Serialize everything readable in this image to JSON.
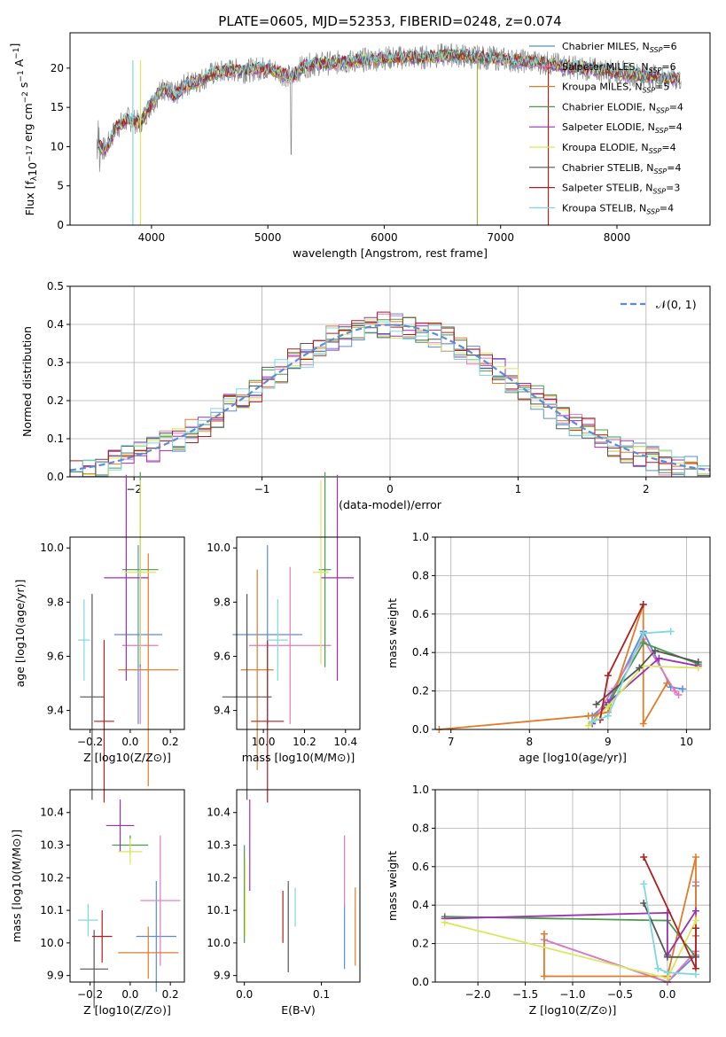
{
  "figure": {
    "title": "PLATE=0605, MJD=52353, FIBERID=0248, z=0.074"
  },
  "chart_data": [
    {
      "id": "spectrum",
      "type": "line",
      "xlabel": "wavelength [Angstrom, rest frame]",
      "ylabel": "Flux [f_λ 10^-17 erg cm^-2 s^-1 A^-1]",
      "xlim": [
        3300,
        8800
      ],
      "ylim": [
        0,
        24.5
      ],
      "xticks": [
        4000,
        5000,
        6000,
        7000,
        8000
      ],
      "yticks": [
        0,
        5,
        10,
        15,
        20
      ],
      "grid": false,
      "legend_position": "right",
      "observed": {
        "x": [
          3530,
          3600,
          3700,
          3800,
          3900,
          4000,
          4100,
          4200,
          4300,
          4400,
          4500,
          4600,
          4700,
          4800,
          4900,
          5000,
          5100,
          5200,
          5300,
          5400,
          5500,
          5600,
          5700,
          5800,
          5900,
          6000,
          6100,
          6200,
          6300,
          6400,
          6500,
          6600,
          6700,
          6800,
          6900,
          7000,
          7100,
          7200,
          7300,
          7400,
          7500,
          7600,
          7700,
          7800,
          7900,
          8000,
          8100,
          8200,
          8300,
          8400,
          8500
        ],
        "y": [
          10.5,
          9.5,
          12.5,
          13.5,
          13,
          15.5,
          17.5,
          16.5,
          18,
          18.3,
          19.2,
          19.5,
          19.8,
          19.6,
          19.9,
          20,
          19.5,
          18.8,
          20.2,
          20.5,
          20.6,
          20.7,
          20.8,
          21,
          21.1,
          21.3,
          21.3,
          21.4,
          21.3,
          21.5,
          21.6,
          21.7,
          21.5,
          21.4,
          21.3,
          21.2,
          21,
          20.9,
          20.8,
          20.6,
          20.4,
          20.2,
          20,
          19.8,
          19.7,
          19.5,
          19.3,
          19.1,
          19,
          18.8,
          18.6
        ]
      },
      "series": [
        {
          "name": "Chabrier MILES, N_SSP=6",
          "label_main": "Chabrier MILES, N",
          "label_sub": "SSP",
          "label_tail": "=6",
          "color": "#5b8bd9"
        },
        {
          "name": "Salpeter MILES, N_SSP=6",
          "label_main": "Salpeter MILES, N",
          "label_sub": "SSP",
          "label_tail": "=6",
          "color": "#e377c2"
        },
        {
          "name": "Kroupa MILES, N_SSP=5",
          "label_main": "Kroupa MILES, N",
          "label_sub": "SSP",
          "label_tail": "=5",
          "color": "#e07b2a"
        },
        {
          "name": "Chabrier ELODIE, N_SSP=4",
          "label_main": "Chabrier ELODIE, N",
          "label_sub": "SSP",
          "label_tail": "=4",
          "color": "#4a9a4a"
        },
        {
          "name": "Salpeter ELODIE, N_SSP=4",
          "label_main": "Salpeter ELODIE, N",
          "label_sub": "SSP",
          "label_tail": "=4",
          "color": "#9b30b4"
        },
        {
          "name": "Kroupa ELODIE, N_SSP=4",
          "label_main": "Kroupa ELODIE, N",
          "label_sub": "SSP",
          "label_tail": "=4",
          "color": "#d8e85a"
        },
        {
          "name": "Chabrier STELIB, N_SSP=4",
          "label_main": "Chabrier STELIB, N",
          "label_sub": "SSP",
          "label_tail": "=4",
          "color": "#555555"
        },
        {
          "name": "Salpeter STELIB, N_SSP=3",
          "label_main": "Salpeter STELIB, N",
          "label_sub": "SSP",
          "label_tail": "=3",
          "color": "#b01e1e"
        },
        {
          "name": "Kroupa STELIB, N_SSP=4",
          "label_main": "Kroupa STELIB, N",
          "label_sub": "SSP",
          "label_tail": "=4",
          "color": "#7fd8e0"
        }
      ]
    },
    {
      "id": "residuals",
      "type": "line",
      "xlabel": "(data-model)/error",
      "ylabel": "Normed distribution",
      "xlim": [
        -2.5,
        2.5
      ],
      "ylim": [
        0,
        0.5
      ],
      "xticks": [
        -2,
        -1,
        0,
        1,
        2
      ],
      "yticks": [
        0.0,
        0.1,
        0.2,
        0.3,
        0.4,
        0.5
      ],
      "grid": true,
      "legend_position": "top-right",
      "reference_label": "𝒩(0, 1)",
      "reference_color": "#5b8bd9"
    },
    {
      "id": "age-vs-Z",
      "type": "scatter",
      "xlabel": "Z [log10(Z/Z⊙)]",
      "ylabel": "age  [log10(age/yr)]",
      "xlim": [
        -0.3,
        0.27
      ],
      "ylim": [
        9.33,
        10.04
      ],
      "xticks": [
        -0.2,
        0.0,
        0.2
      ],
      "yticks": [
        9.4,
        9.6,
        9.8,
        10.0
      ],
      "points": [
        {
          "x": 0.04,
          "y": 9.68,
          "xerr": 0.12,
          "yerr": 0.33
        },
        {
          "x": 0.05,
          "y": 9.64,
          "xerr": 0.09,
          "yerr": 0.29
        },
        {
          "x": 0.09,
          "y": 9.55,
          "xerr": 0.15,
          "yerr": 0.43
        },
        {
          "x": 0.05,
          "y": 9.92,
          "xerr": 0.09,
          "yerr": 0.36
        },
        {
          "x": -0.02,
          "y": 9.89,
          "xerr": 0.11,
          "yerr": 0.38
        },
        {
          "x": 0.05,
          "y": 9.91,
          "xerr": 0.08,
          "yerr": 0.34
        },
        {
          "x": -0.19,
          "y": 9.45,
          "xerr": 0.06,
          "yerr": 0.38
        },
        {
          "x": -0.13,
          "y": 9.36,
          "xerr": 0.05,
          "yerr": 0.3
        },
        {
          "x": -0.23,
          "y": 9.66,
          "xerr": 0.03,
          "yerr": 0.15
        }
      ]
    },
    {
      "id": "age-vs-mass",
      "type": "scatter",
      "xlabel": "mass [log10(M/M⊙)]",
      "ylabel": "",
      "xlim": [
        9.87,
        10.47
      ],
      "ylim": [
        9.33,
        10.04
      ],
      "xticks": [
        10.0,
        10.2,
        10.4
      ],
      "yticks": [
        9.4,
        9.6,
        9.8,
        10.0
      ],
      "points": [
        {
          "x": 10.02,
          "y": 9.68,
          "xerr": 0.17,
          "yerr": 0.33
        },
        {
          "x": 10.13,
          "y": 9.64,
          "xerr": 0.2,
          "yerr": 0.29
        },
        {
          "x": 9.97,
          "y": 9.55,
          "xerr": 0.08,
          "yerr": 0.37
        },
        {
          "x": 10.3,
          "y": 9.92,
          "xerr": 0.03,
          "yerr": 0.36
        },
        {
          "x": 10.36,
          "y": 9.89,
          "xerr": 0.08,
          "yerr": 0.38
        },
        {
          "x": 10.28,
          "y": 9.91,
          "xerr": 0.04,
          "yerr": 0.34
        },
        {
          "x": 9.92,
          "y": 9.45,
          "xerr": 0.12,
          "yerr": 0.38
        },
        {
          "x": 10.02,
          "y": 9.36,
          "xerr": 0.08,
          "yerr": 0.3
        },
        {
          "x": 10.07,
          "y": 9.66,
          "xerr": 0.05,
          "yerr": 0.15
        }
      ]
    },
    {
      "id": "weight-vs-age",
      "type": "line",
      "xlabel": "age  [log10(age/yr)]",
      "ylabel": "mass weight",
      "xlim": [
        6.8,
        10.3
      ],
      "ylim": [
        0,
        1
      ],
      "xticks": [
        7,
        8,
        9,
        10
      ],
      "yticks": [
        0.0,
        0.2,
        0.4,
        0.6,
        0.8,
        1.0
      ],
      "grid": true,
      "series": [
        {
          "x": [
            8.8,
            9.0,
            9.45,
            9.8,
            9.95
          ],
          "y": [
            0.07,
            0.14,
            0.51,
            0.22,
            0.21
          ]
        },
        {
          "x": [
            8.8,
            9.05,
            9.45,
            9.85,
            9.9
          ],
          "y": [
            0.04,
            0.2,
            0.47,
            0.2,
            0.18
          ]
        },
        {
          "x": [
            6.85,
            8.75,
            9.0,
            9.45,
            9.45,
            9.75
          ],
          "y": [
            0.0,
            0.07,
            0.09,
            0.65,
            0.03,
            0.24
          ]
        },
        {
          "x": [
            8.8,
            9.0,
            9.45,
            10.15
          ],
          "y": [
            0.04,
            0.13,
            0.45,
            0.34
          ]
        },
        {
          "x": [
            8.8,
            9.0,
            9.65,
            10.15
          ],
          "y": [
            0.03,
            0.14,
            0.37,
            0.33
          ]
        },
        {
          "x": [
            8.75,
            9.0,
            9.45,
            10.15
          ],
          "y": [
            0.02,
            0.12,
            0.33,
            0.32
          ]
        },
        {
          "x": [
            8.85,
            9.4,
            9.6,
            10.15
          ],
          "y": [
            0.13,
            0.32,
            0.41,
            0.35
          ]
        },
        {
          "x": [
            8.9,
            9.0,
            9.45
          ],
          "y": [
            0.05,
            0.28,
            0.65
          ]
        },
        {
          "x": [
            8.8,
            9.0,
            9.45,
            9.8
          ],
          "y": [
            0.04,
            0.07,
            0.5,
            0.51
          ]
        }
      ]
    },
    {
      "id": "mass-vs-Z",
      "type": "scatter",
      "xlabel": "Z [log10(Z/Z⊙)]",
      "ylabel": "mass [log10(M/M⊙)]",
      "xlim": [
        -0.3,
        0.27
      ],
      "ylim": [
        9.88,
        10.47
      ],
      "xticks": [
        -0.2,
        0.0,
        0.2
      ],
      "yticks": [
        9.9,
        10.0,
        10.1,
        10.2,
        10.3,
        10.4
      ],
      "points": [
        {
          "x": 0.13,
          "y": 10.02,
          "xerr": 0.1,
          "yerr": 0.17
        },
        {
          "x": 0.15,
          "y": 10.13,
          "xerr": 0.1,
          "yerr": 0.2
        },
        {
          "x": 0.09,
          "y": 9.97,
          "xerr": 0.15,
          "yerr": 0.08
        },
        {
          "x": 0.0,
          "y": 10.3,
          "xerr": 0.09,
          "yerr": 0.03
        },
        {
          "x": -0.05,
          "y": 10.36,
          "xerr": 0.07,
          "yerr": 0.08
        },
        {
          "x": 0.0,
          "y": 10.28,
          "xerr": 0.06,
          "yerr": 0.04
        },
        {
          "x": -0.18,
          "y": 9.92,
          "xerr": 0.07,
          "yerr": 0.12
        },
        {
          "x": -0.14,
          "y": 10.02,
          "xerr": 0.05,
          "yerr": 0.08
        },
        {
          "x": -0.21,
          "y": 10.07,
          "xerr": 0.05,
          "yerr": 0.05
        }
      ]
    },
    {
      "id": "mass-vs-EBV",
      "type": "scatter",
      "xlabel": "E(B-V)",
      "ylabel": "",
      "xlim": [
        -0.01,
        0.15
      ],
      "ylim": [
        9.88,
        10.47
      ],
      "xticks": [
        0.0,
        0.1
      ],
      "yticks": [
        9.9,
        10.0,
        10.1,
        10.2,
        10.3,
        10.4
      ],
      "points": [
        {
          "x": 0.13,
          "y": 10.02,
          "xerr": 0,
          "yerr": 0.1
        },
        {
          "x": 0.13,
          "y": 10.22,
          "xerr": 0,
          "yerr": 0.11
        },
        {
          "x": 0.144,
          "y": 10.05,
          "xerr": 0,
          "yerr": 0.12
        },
        {
          "x": 0.0,
          "y": 10.15,
          "xerr": 0,
          "yerr": 0.15
        },
        {
          "x": 0.007,
          "y": 10.3,
          "xerr": 0,
          "yerr": 0.14
        },
        {
          "x": 0.001,
          "y": 10.14,
          "xerr": 0,
          "yerr": 0.12
        },
        {
          "x": 0.057,
          "y": 10.05,
          "xerr": 0,
          "yerr": 0.14
        },
        {
          "x": 0.05,
          "y": 10.08,
          "xerr": 0,
          "yerr": 0.08
        },
        {
          "x": 0.066,
          "y": 10.11,
          "xerr": 0,
          "yerr": 0.06
        }
      ]
    },
    {
      "id": "weight-vs-Z",
      "type": "line",
      "xlabel": "Z [log10(Z/Z⊙)]",
      "ylabel": "mass weight",
      "xlim": [
        -2.45,
        0.45
      ],
      "ylim": [
        0,
        1
      ],
      "xticks": [
        -2.0,
        -1.5,
        -1.0,
        -0.5,
        0.0
      ],
      "yticks": [
        0.0,
        0.2,
        0.4,
        0.6,
        0.8,
        1.0
      ],
      "grid": true,
      "series": [
        {
          "x": [
            -1.3,
            0.0,
            0.3,
            0.3
          ],
          "y": [
            0.22,
            0.0,
            0.14,
            0.5
          ]
        },
        {
          "x": [
            -1.3,
            0.0,
            0.3,
            0.3
          ],
          "y": [
            0.22,
            0.0,
            0.16,
            0.52
          ]
        },
        {
          "x": [
            -1.3,
            -1.3,
            0.0,
            0.3,
            0.3
          ],
          "y": [
            0.25,
            0.03,
            0.03,
            0.65,
            0.24
          ]
        },
        {
          "x": [
            -2.35,
            0.0,
            0.3
          ],
          "y": [
            0.34,
            0.32,
            0.13
          ]
        },
        {
          "x": [
            -2.35,
            0.0,
            0.0,
            0.3
          ],
          "y": [
            0.33,
            0.36,
            0.14,
            0.37
          ]
        },
        {
          "x": [
            -2.35,
            0.0,
            0.3
          ],
          "y": [
            0.31,
            0.02,
            0.32
          ]
        },
        {
          "x": [
            -0.25,
            0.0,
            0.3
          ],
          "y": [
            0.41,
            0.13,
            0.13
          ]
        },
        {
          "x": [
            -0.25,
            0.3,
            0.3
          ],
          "y": [
            0.65,
            0.07,
            0.28
          ]
        },
        {
          "x": [
            -0.25,
            -0.1,
            0.0,
            0.3
          ],
          "y": [
            0.51,
            0.07,
            0.05,
            0.04
          ]
        }
      ]
    }
  ]
}
